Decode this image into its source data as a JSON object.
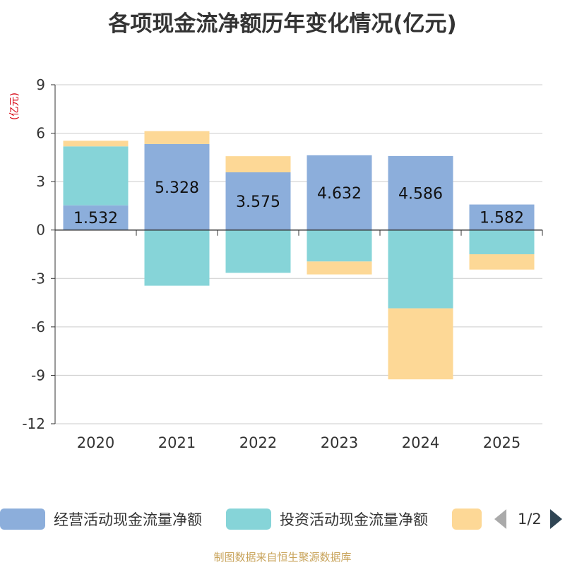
{
  "chart_data": {
    "type": "bar",
    "stacked": true,
    "title": "各项现金流净额历年变化情况(亿元)",
    "ylabel": "(亿元)",
    "xlabel": "",
    "categories": [
      "2020",
      "2021",
      "2022",
      "2023",
      "2024",
      "2025"
    ],
    "ylim": [
      -12,
      9
    ],
    "yticks": [
      9,
      6,
      3,
      0,
      -3,
      -6,
      -9,
      -12
    ],
    "grid": true,
    "series": [
      {
        "name": "经营活动现金流量净额",
        "color": "#8caedb",
        "values": [
          1.532,
          5.328,
          3.575,
          4.632,
          4.586,
          1.582
        ],
        "show_labels": true
      },
      {
        "name": "投资活动现金流量净额",
        "color": "#86d4d8",
        "values": [
          3.65,
          -3.45,
          -2.65,
          -1.95,
          -4.85,
          -1.5
        ],
        "show_labels": false
      },
      {
        "name": "",
        "color": "#fdd896",
        "values": [
          0.35,
          0.8,
          1.0,
          -0.8,
          -4.4,
          -0.95
        ],
        "show_labels": false
      }
    ]
  },
  "legend": {
    "items": [
      {
        "label": "经营活动现金流量净额",
        "color": "#8caedb"
      },
      {
        "label": "投资活动现金流量净额",
        "color": "#86d4d8"
      },
      {
        "label": "",
        "color": "#fdd896"
      }
    ],
    "page": "1/2"
  },
  "source": "制图数据来自恒生聚源数据库"
}
